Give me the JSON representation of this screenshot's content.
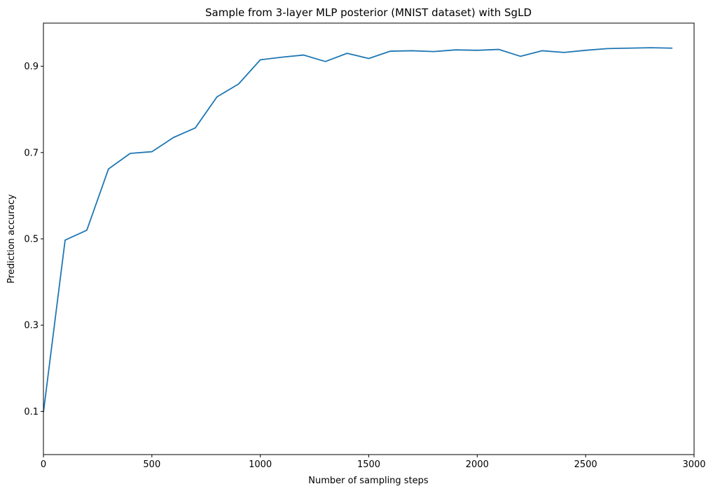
{
  "chart_data": {
    "type": "line",
    "title": "Sample from 3-layer MLP posterior (MNIST dataset) with SgLD",
    "xlabel": "Number of sampling steps",
    "ylabel": "Prediction accuracy",
    "xlim": [
      0,
      3000
    ],
    "ylim": [
      0.0,
      1.0
    ],
    "xticks": [
      "0",
      "500",
      "1000",
      "1500",
      "2000",
      "2500",
      "3000"
    ],
    "yticks": [
      "0.1",
      "0.3",
      "0.5",
      "0.7",
      "0.9"
    ],
    "grid": false,
    "series": [
      {
        "color": "#1f77b4",
        "x": [
          0,
          100,
          200,
          300,
          400,
          500,
          600,
          700,
          800,
          900,
          1000,
          1100,
          1200,
          1300,
          1400,
          1500,
          1600,
          1700,
          1800,
          1900,
          2000,
          2100,
          2200,
          2300,
          2400,
          2500,
          2600,
          2700,
          2800,
          2900
        ],
        "values": [
          0.098,
          0.497,
          0.52,
          0.662,
          0.698,
          0.702,
          0.735,
          0.757,
          0.829,
          0.859,
          0.915,
          0.921,
          0.926,
          0.911,
          0.93,
          0.918,
          0.935,
          0.936,
          0.934,
          0.938,
          0.937,
          0.939,
          0.923,
          0.936,
          0.932,
          0.937,
          0.941,
          0.942,
          0.943,
          0.942
        ]
      }
    ]
  }
}
